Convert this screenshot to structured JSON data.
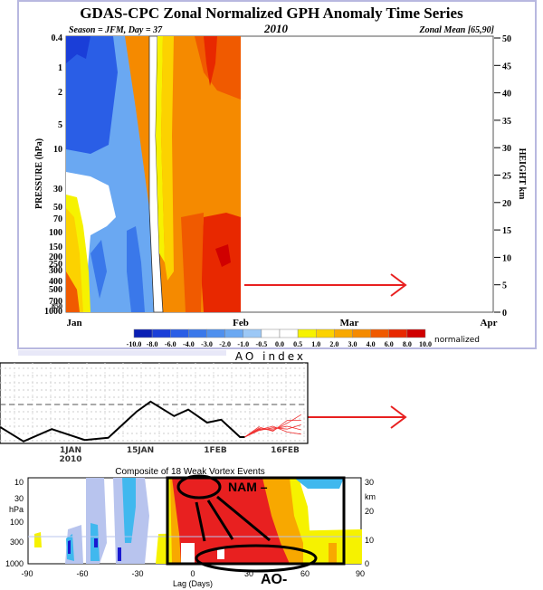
{
  "chart_data": [
    {
      "type": "heatmap",
      "title": "GDAS-CPC Zonal Normalized GPH Anomaly Time Series",
      "subtitle_left": "Season = JFM, Day =  37",
      "subtitle_center": "2010",
      "subtitle_right": "Zonal Mean [65,90]",
      "ylabel": "PRESSURE (hPa)",
      "ylabel_right": "HEIGHT  km",
      "y_ticks": [
        "0.4",
        "1",
        "2",
        "5",
        "10",
        "30",
        "50",
        "70",
        "100",
        "150",
        "200",
        "250",
        "300",
        "400",
        "500",
        "700",
        "850",
        "1000"
      ],
      "y_right_ticks": [
        "50",
        "45",
        "40",
        "35",
        "30",
        "25",
        "20",
        "15",
        "10",
        "5",
        "0"
      ],
      "x_ticks": [
        "Jan",
        "Feb",
        "Mar",
        "Apr"
      ],
      "colorbar_levels": [
        "-10.0",
        "-8.0",
        "-6.0",
        "-4.0",
        "-3.0",
        "-2.0",
        "-1.0",
        "-0.5",
        "0.0",
        "0.5",
        "1.0",
        "2.0",
        "3.0",
        "4.0",
        "6.0",
        "8.0",
        "10.0"
      ],
      "colorbar_colors": [
        "#0a1fb4",
        "#1a3ed8",
        "#2a5ee6",
        "#3a78ea",
        "#4f90ee",
        "#6aa8f2",
        "#9cc8f6",
        "#ffffff",
        "#ffffff",
        "#f6f200",
        "#fcd200",
        "#f8a800",
        "#f58a00",
        "#f05a00",
        "#e82800",
        "#d00000"
      ],
      "colorbar_unit": "normalized",
      "data_days_shown": 37
    },
    {
      "type": "line",
      "title": "AO index",
      "x_ticks": [
        "1JAN",
        "15JAN",
        "1FEB",
        "16FEB"
      ],
      "x_tick_sub": "2010",
      "reference_line": 0,
      "observed": {
        "day": [
          -15,
          -10,
          -4,
          3,
          8,
          14,
          17,
          22,
          25,
          29,
          32,
          36,
          37
        ],
        "value": [
          -3.1,
          -5.1,
          -3.4,
          -4.9,
          -4.6,
          -1.0,
          0.4,
          -1.6,
          -0.7,
          -2.5,
          -2.1,
          -4.5,
          -4.5
        ]
      },
      "forecast_members": [
        {
          "day": [
            37,
            40,
            43,
            46,
            49
          ],
          "value": [
            -4.5,
            -3.3,
            -3.6,
            -2.6,
            -1.4
          ]
        },
        {
          "day": [
            37,
            40,
            43,
            46,
            49
          ],
          "value": [
            -4.5,
            -3.6,
            -3.2,
            -3.4,
            -2.8
          ]
        },
        {
          "day": [
            37,
            40,
            43,
            46,
            49
          ],
          "value": [
            -4.5,
            -3.1,
            -3.7,
            -2.2,
            -2.2
          ]
        },
        {
          "day": [
            37,
            40,
            43,
            46,
            49
          ],
          "value": [
            -4.5,
            -3.5,
            -3.0,
            -3.8,
            -4.1
          ]
        },
        {
          "day": [
            37,
            40,
            43,
            46,
            49
          ],
          "value": [
            -4.5,
            -3.4,
            -3.4,
            -3.0,
            -3.5
          ]
        }
      ]
    },
    {
      "type": "heatmap",
      "title": "Composite of 18 Weak Vortex Events",
      "xlabel": "Lag (Days)",
      "ylabel": "hPa",
      "ylabel_right": "km",
      "x_ticks": [
        "-90",
        "-60",
        "-30",
        "0",
        "30",
        "60",
        "90"
      ],
      "y_ticks": [
        "10",
        "30",
        "100",
        "300",
        "1000"
      ],
      "y_right_ticks": [
        "30",
        "20",
        "10",
        "0"
      ],
      "annotations": [
        "NAM –",
        "AO-"
      ]
    }
  ]
}
